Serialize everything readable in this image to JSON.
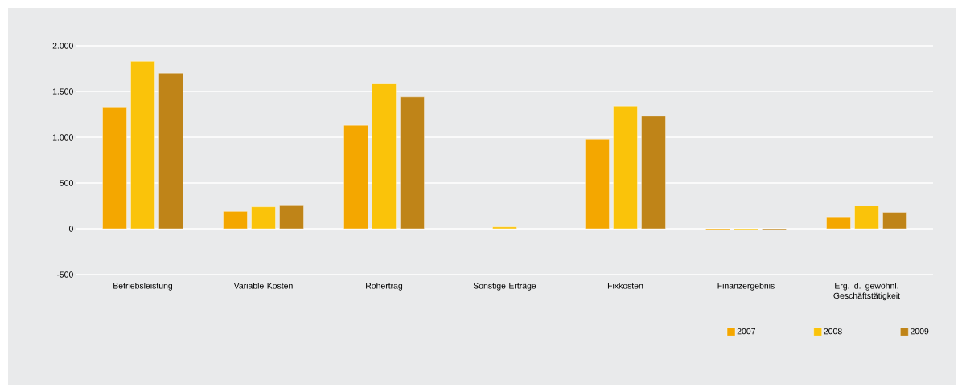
{
  "chart_data": {
    "type": "bar",
    "categories": [
      "Betriebsleistung",
      "Variable Kosten",
      "Rohertrag",
      "Sonstige Erträge",
      "Fixkosten",
      "Finanzergebnis",
      "Erg. d. gewöhnl. Geschäftstätigkeit"
    ],
    "series": [
      {
        "name": "2007",
        "color": "#f4a700",
        "values": [
          1330,
          190,
          1130,
          null,
          980,
          -10,
          130
        ]
      },
      {
        "name": "2008",
        "color": "#fac30a",
        "values": [
          1830,
          240,
          1590,
          20,
          1340,
          -10,
          250
        ]
      },
      {
        "name": "2009",
        "color": "#bf8418",
        "values": [
          1700,
          260,
          1440,
          null,
          1230,
          -10,
          180
        ]
      }
    ],
    "ylim": [
      -500,
      2000
    ],
    "yticks": [
      {
        "value": -500,
        "label": "-500"
      },
      {
        "value": 0,
        "label": "0"
      },
      {
        "value": 500,
        "label": "500"
      },
      {
        "value": 1000,
        "label": "1.000"
      },
      {
        "value": 1500,
        "label": "1.500"
      },
      {
        "value": 2000,
        "label": "2.000"
      }
    ],
    "grid": "y",
    "legend": "bottom right"
  }
}
